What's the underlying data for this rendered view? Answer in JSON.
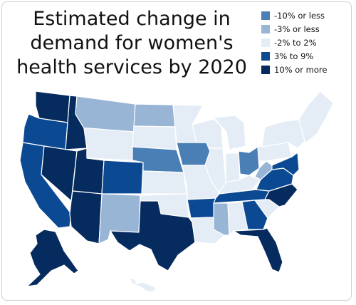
{
  "title_lines": [
    "Estimated change in",
    "demand for women's",
    "health services by 2020"
  ],
  "legend": [
    {
      "label": "-10% or less",
      "color": "#4a7fb5"
    },
    {
      "label": "-3% or less",
      "color": "#98b5d6"
    },
    {
      "label": "-2% to 2%",
      "color": "#e4ecf6"
    },
    {
      "label": "3% to 9%",
      "color": "#0b4a93"
    },
    {
      "label": "10% or more",
      "color": "#062b5e"
    }
  ],
  "region_categories": {
    "washington": "10% or more",
    "oregon": "3% to 9%",
    "california": "3% to 9%",
    "idaho": "10% or more",
    "nevada": "10% or more",
    "utah": "10% or more",
    "arizona": "10% or more",
    "montana": "-3% or less",
    "wyoming": "-2% to 2%",
    "colorado": "3% to 9%",
    "new-mexico": "-3% or less",
    "north-dakota": "-3% or less",
    "south-dakota": "-2% to 2%",
    "nebraska": "-10% or less",
    "kansas": "-2% to 2%",
    "oklahoma": "-2% to 2%",
    "texas": "10% or more",
    "minnesota": "-2% to 2%",
    "iowa": "-10% or less",
    "missouri": "-2% to 2%",
    "arkansas": "3% to 9%",
    "louisiana": "-2% to 2%",
    "wisconsin": "-2% to 2%",
    "illinois": "-2% to 2%",
    "michigan": "-2% to 2%",
    "indiana": "-2% to 2%",
    "ohio": "-10% or less",
    "kentucky": "-2% to 2%",
    "tennessee": "3% to 9%",
    "mississippi": "-3% or less",
    "alabama": "-2% to 2%",
    "georgia": "3% to 9%",
    "florida": "10% or more",
    "south-carolina": "-2% to 2%",
    "north-carolina": "10% or more",
    "virginia": "3% to 9%",
    "west-virginia": "-3% or less",
    "pennsylvania": "-2% to 2%",
    "new-york": "-2% to 2%",
    "new-england": "-2% to 2%",
    "maryland-delaware": "3% to 9%",
    "alaska": "10% or more",
    "hawaii": "-2% to 2%"
  }
}
